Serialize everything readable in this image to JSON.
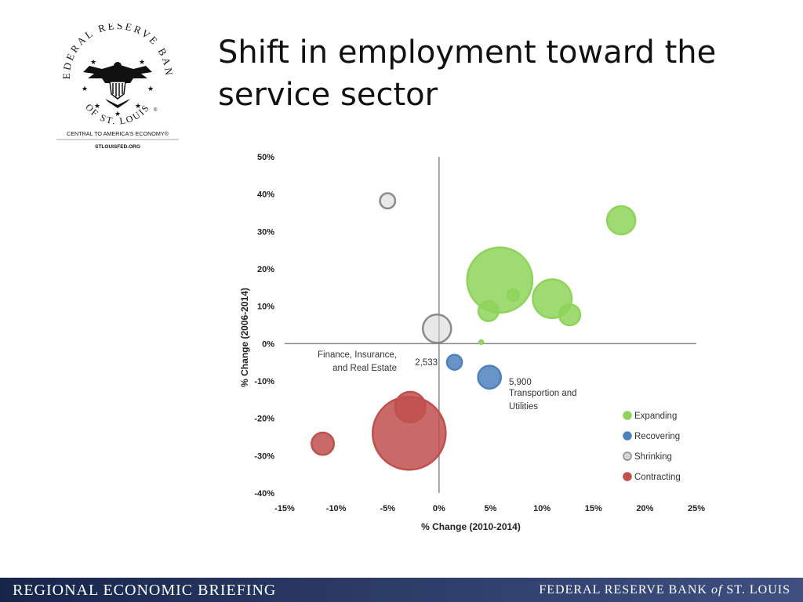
{
  "logo": {
    "arc_top": "FEDERAL RESERVE BANK",
    "arc_bottom": "OF ST. LOUIS",
    "registered": "®",
    "tagline": "CENTRAL TO AMERICA'S ECONOMY®",
    "url": "STLOUISFED.ORG",
    "icon": "eagle-seal-icon"
  },
  "slide": {
    "title_line1": "Shift in employment toward the",
    "title_line2": "service sector"
  },
  "footer": {
    "left": "REGIONAL ECONOMIC BRIEFING",
    "right_pre": "FEDERAL RESERVE BANK ",
    "right_of": "of",
    "right_post": " ST. LOUIS"
  },
  "colors": {
    "Expanding": "#8fd35a",
    "Recovering": "#4f81bd",
    "Shrinking": "#d6d6d6",
    "Contracting": "#c0504d"
  },
  "chart_data": {
    "type": "scatter",
    "xlabel": "% Change  (2010-2014)",
    "ylabel": "% Change  (2006-2014)",
    "xlim": [
      -15,
      25
    ],
    "ylim": [
      -40,
      50
    ],
    "xticks": [
      -15,
      -10,
      -5,
      0,
      5,
      10,
      15,
      20,
      25
    ],
    "yticks": [
      -40,
      -30,
      -20,
      -10,
      0,
      10,
      20,
      30,
      40,
      50
    ],
    "tick_suffix": "%",
    "legend_position": "bottom-right",
    "legend": [
      "Expanding",
      "Recovering",
      "Shrinking",
      "Contracting"
    ],
    "points": [
      {
        "group": "Expanding",
        "x": 17.7,
        "y": 33,
        "size": 9000
      },
      {
        "group": "Expanding",
        "x": 5.9,
        "y": 17,
        "size": 48000
      },
      {
        "group": "Expanding",
        "x": 7.2,
        "y": 13,
        "size": 1500
      },
      {
        "group": "Expanding",
        "x": 11,
        "y": 12,
        "size": 17000
      },
      {
        "group": "Expanding",
        "x": 4.8,
        "y": 8.7,
        "size": 4500
      },
      {
        "group": "Expanding",
        "x": 12.7,
        "y": 7.7,
        "size": 5000
      },
      {
        "group": "Expanding",
        "x": 4.1,
        "y": 0.4,
        "size": 150
      },
      {
        "group": "Recovering",
        "x": 1.5,
        "y": -5,
        "size": 2533
      },
      {
        "group": "Recovering",
        "x": 4.9,
        "y": -9,
        "size": 5900
      },
      {
        "group": "Shrinking",
        "x": -5,
        "y": 38.2,
        "size": 2600
      },
      {
        "group": "Shrinking",
        "x": -0.2,
        "y": 4,
        "size": 9000
      },
      {
        "group": "Contracting",
        "x": -11.3,
        "y": -26.8,
        "size": 5600
      },
      {
        "group": "Contracting",
        "x": -2.8,
        "y": -17,
        "size": 10500
      },
      {
        "group": "Contracting",
        "x": -2.9,
        "y": -24,
        "size": 60000
      }
    ],
    "annotations": {
      "fire_label_line1": "Finance, Insurance,",
      "fire_label_line2": "and Real Estate",
      "fire_value": "2,533",
      "tu_value": "5,900",
      "tu_label_line1": "Transportion and",
      "tu_label_line2": "Utilities"
    }
  }
}
